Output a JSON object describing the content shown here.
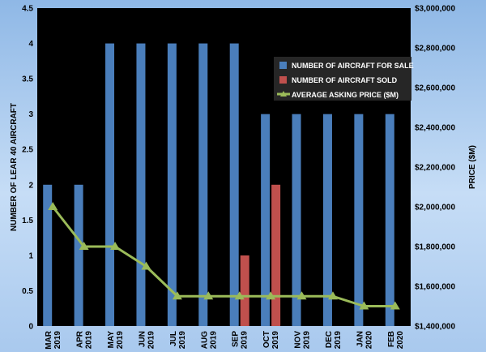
{
  "chart_data": {
    "type": "bar",
    "categories": [
      [
        "MAR",
        "2019"
      ],
      [
        "APR",
        "2019"
      ],
      [
        "MAY",
        "2019"
      ],
      [
        "JUN",
        "2019"
      ],
      [
        "JUL",
        "2019"
      ],
      [
        "AUG",
        "2019"
      ],
      [
        "SEP",
        "2019"
      ],
      [
        "OCT",
        "2019"
      ],
      [
        "NOV",
        "2019"
      ],
      [
        "DEC",
        "2019"
      ],
      [
        "JAN",
        "2020"
      ],
      [
        "FEB",
        "2020"
      ]
    ],
    "series": [
      {
        "name": "NUMBER OF AIRCRAFT FOR SALE",
        "kind": "bar",
        "axis": "left",
        "color": "#4a7ebb",
        "values": [
          2,
          2,
          4,
          4,
          4,
          4,
          4,
          3,
          3,
          3,
          3,
          3
        ]
      },
      {
        "name": "NUMBER OF AIRCRAFT SOLD",
        "kind": "bar",
        "axis": "left",
        "color": "#c0504d",
        "values": [
          0,
          0,
          0,
          0,
          0,
          0,
          1,
          2,
          0,
          0,
          0,
          0
        ]
      },
      {
        "name": "AVERAGE ASKING PRICE ($M)",
        "kind": "line",
        "axis": "right",
        "color": "#9bbb59",
        "values": [
          2000000,
          1800000,
          1800000,
          1700000,
          1550000,
          1550000,
          1550000,
          1550000,
          1550000,
          1550000,
          1500000,
          1500000
        ]
      }
    ],
    "ylabel": "NUMBER OF LEAR 40 AIRCRAFT",
    "y2label": "PRICE ($M)",
    "ylim": [
      0,
      4.5
    ],
    "yticks": [
      "0",
      "0.5",
      "1",
      "1.5",
      "2",
      "2.5",
      "3",
      "3.5",
      "4",
      "4.5"
    ],
    "y2lim": [
      1400000,
      3000000
    ],
    "y2ticks": [
      "$1,400,000",
      "$1,600,000",
      "$1,800,000",
      "$2,000,000",
      "$2,200,000",
      "$2,400,000",
      "$2,600,000",
      "$2,800,000",
      "$3,000,000"
    ],
    "legend_position": "top-right"
  }
}
